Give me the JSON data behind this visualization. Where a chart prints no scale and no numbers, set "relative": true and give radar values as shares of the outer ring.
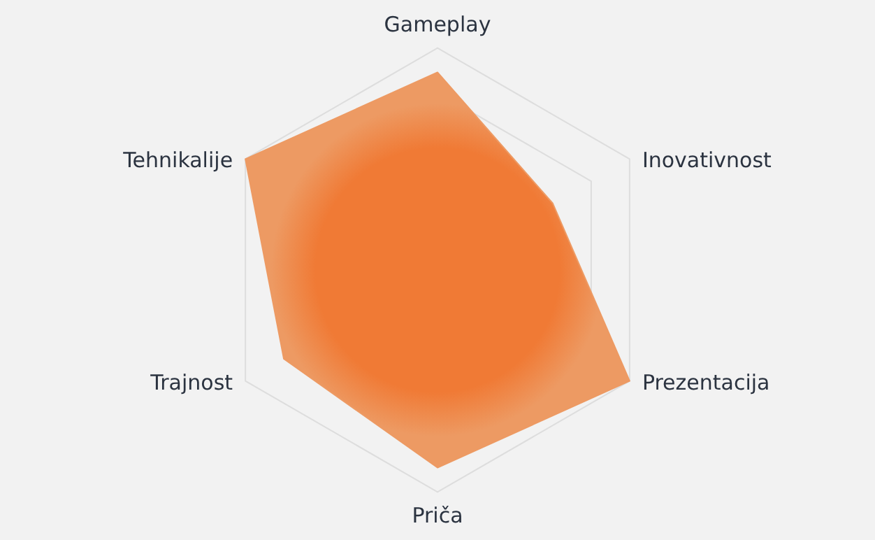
{
  "chart_data": {
    "type": "radar",
    "relative": true,
    "grid": true,
    "categories": [
      "Gameplay",
      "Inovativnost",
      "Prezentacija",
      "Priča",
      "Trajnost",
      "Tehnikalije"
    ],
    "series": [
      {
        "color": "#ed9a63",
        "values": [
          0.89,
          0.6,
          1,
          0.89,
          0.8,
          1
        ]
      }
    ]
  }
}
